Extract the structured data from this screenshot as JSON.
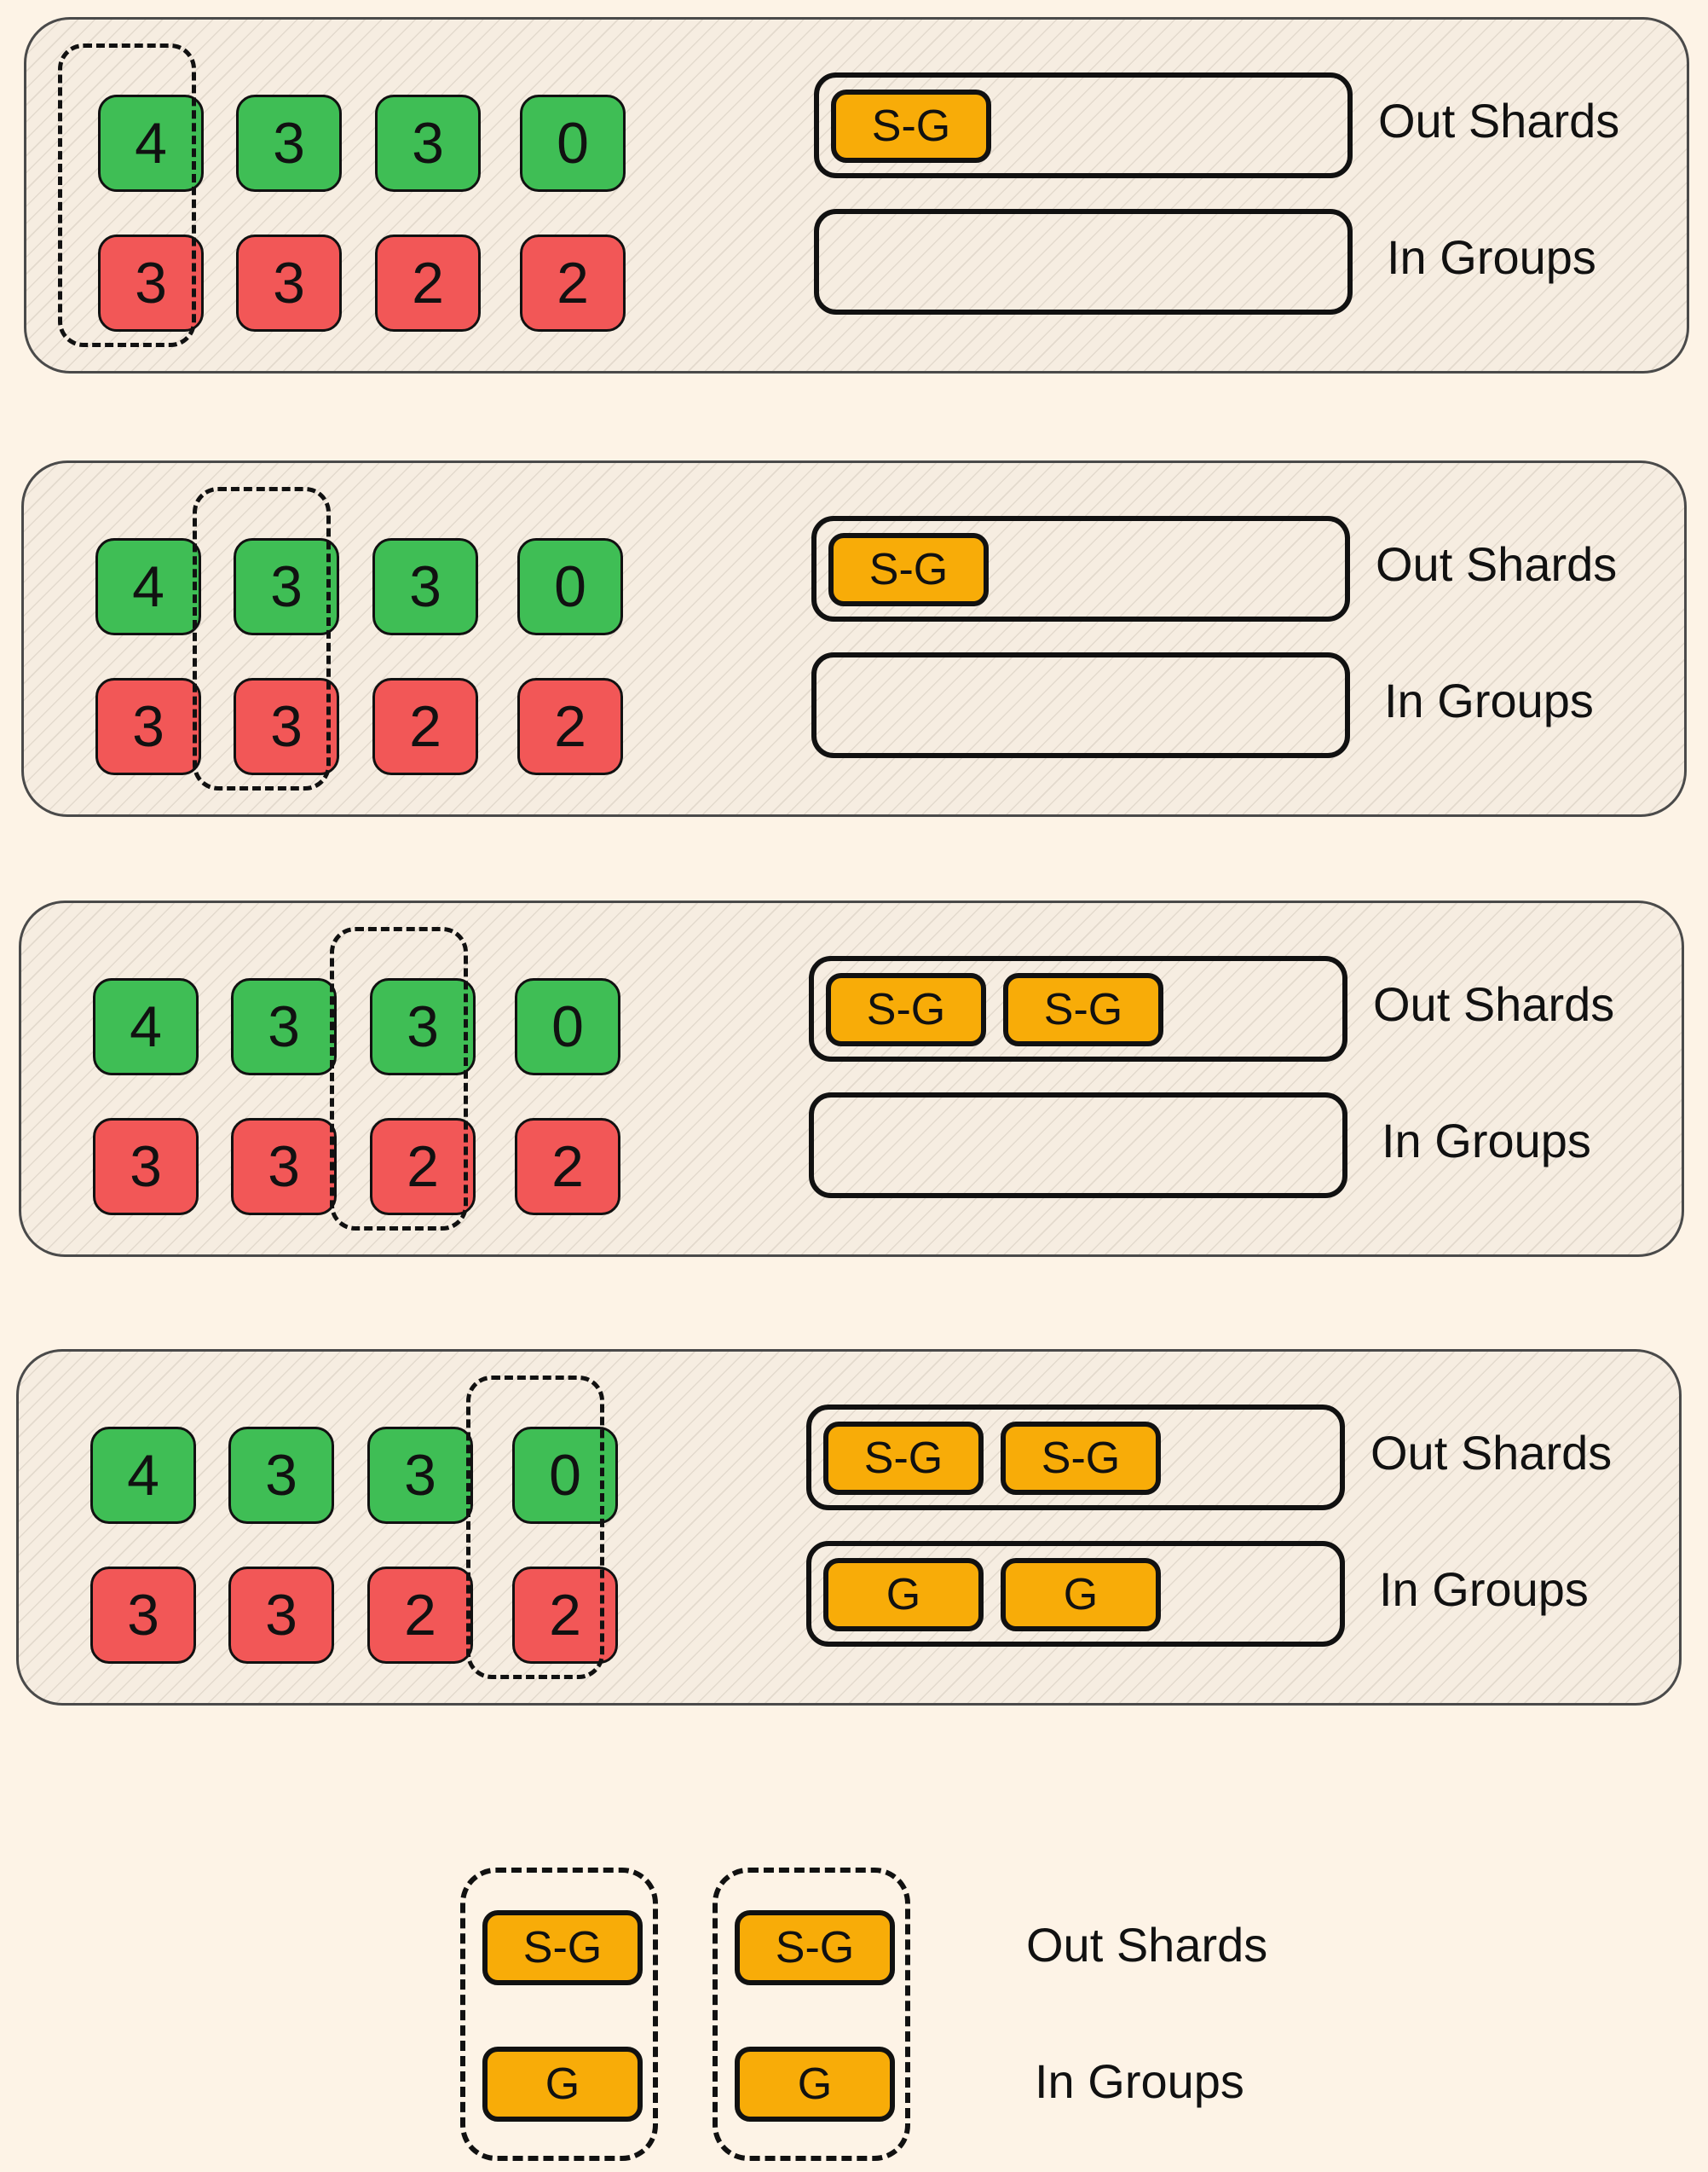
{
  "panels": [
    {
      "top": [
        4,
        3,
        3,
        0
      ],
      "bottom": [
        3,
        3,
        2,
        2
      ],
      "selected_column": 1,
      "out_shards": [
        "S-G"
      ],
      "in_groups": [],
      "out_label": "Out Shards",
      "in_label": "In Groups"
    },
    {
      "top": [
        4,
        3,
        3,
        0
      ],
      "bottom": [
        3,
        3,
        2,
        2
      ],
      "selected_column": 2,
      "out_shards": [
        "S-G"
      ],
      "in_groups": [],
      "out_label": "Out Shards",
      "in_label": "In Groups"
    },
    {
      "top": [
        4,
        3,
        3,
        0
      ],
      "bottom": [
        3,
        3,
        2,
        2
      ],
      "selected_column": 3,
      "out_shards": [
        "S-G",
        "S-G"
      ],
      "in_groups": [],
      "out_label": "Out Shards",
      "in_label": "In Groups"
    },
    {
      "top": [
        4,
        3,
        3,
        0
      ],
      "bottom": [
        3,
        3,
        2,
        2
      ],
      "selected_column": 4,
      "out_shards": [
        "S-G",
        "S-G"
      ],
      "in_groups": [
        "G",
        "G"
      ],
      "out_label": "Out Shards",
      "in_label": "In Groups"
    }
  ],
  "legend": {
    "groups": [
      {
        "out": "S-G",
        "in": "G"
      },
      {
        "out": "S-G",
        "in": "G"
      }
    ],
    "out_label": "Out Shards",
    "in_label": "In Groups"
  },
  "colors": {
    "top_cell": "#3FBE55",
    "bottom_cell": "#F25757",
    "chip": "#F8AC08",
    "background": "#FDF3E6"
  }
}
